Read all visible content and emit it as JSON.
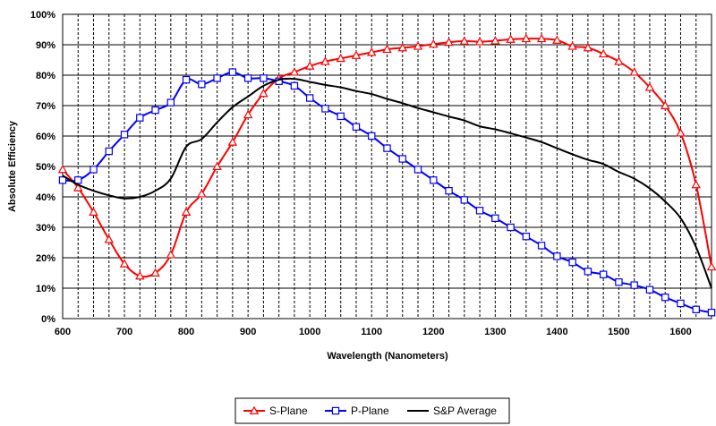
{
  "chart_data": {
    "type": "line",
    "title": "",
    "xlabel": "Wavelength (Nanometers)",
    "ylabel": "Absolute Efficiency",
    "xlim": [
      600,
      1650
    ],
    "ylim": [
      0,
      100
    ],
    "x_ticks": [
      "600",
      "700",
      "800",
      "900",
      "1000",
      "1100",
      "1200",
      "1300",
      "1400",
      "1500",
      "1600"
    ],
    "y_ticks": [
      "0%",
      "10%",
      "20%",
      "30%",
      "40%",
      "50%",
      "60%",
      "70%",
      "80%",
      "90%",
      "100%"
    ],
    "grid": true,
    "legend_position": "bottom",
    "series": [
      {
        "name": "S-Plane",
        "color": "#ff0000",
        "marker": "triangle",
        "x": [
          600,
          625,
          650,
          675,
          700,
          725,
          750,
          775,
          800,
          825,
          850,
          875,
          900,
          925,
          950,
          975,
          1000,
          1025,
          1050,
          1075,
          1100,
          1125,
          1150,
          1175,
          1200,
          1225,
          1250,
          1275,
          1300,
          1325,
          1350,
          1375,
          1400,
          1425,
          1450,
          1475,
          1500,
          1525,
          1550,
          1575,
          1600,
          1625,
          1650
        ],
        "y": [
          49,
          43,
          35,
          26,
          18,
          14,
          15,
          21,
          35,
          41,
          50,
          58,
          67,
          74,
          79,
          81,
          83,
          84.5,
          85.5,
          86.5,
          87.5,
          88.5,
          89,
          89.5,
          90.2,
          90.8,
          91.2,
          91,
          91.3,
          91.8,
          92,
          92,
          91.5,
          89.5,
          89,
          87,
          84.5,
          81,
          76,
          70,
          61,
          44,
          17
        ]
      },
      {
        "name": "P-Plane",
        "color": "#0000ff",
        "marker": "square",
        "x": [
          600,
          625,
          650,
          675,
          700,
          725,
          750,
          775,
          800,
          825,
          850,
          875,
          900,
          925,
          950,
          975,
          1000,
          1025,
          1050,
          1075,
          1100,
          1125,
          1150,
          1175,
          1200,
          1225,
          1250,
          1275,
          1300,
          1325,
          1350,
          1375,
          1400,
          1425,
          1450,
          1475,
          1500,
          1525,
          1550,
          1575,
          1600,
          1625,
          1650
        ],
        "y": [
          45.5,
          45.5,
          49,
          55,
          60.5,
          66,
          68.5,
          71,
          78.5,
          77,
          79,
          81,
          79,
          79,
          78,
          76.5,
          72.5,
          69,
          66.5,
          63,
          60,
          56,
          52.5,
          49,
          45.5,
          42,
          39,
          35.5,
          33,
          30,
          27,
          24,
          20.5,
          18.5,
          15.5,
          14.5,
          12,
          11,
          9.5,
          7,
          5,
          3,
          2
        ]
      },
      {
        "name": "S&P Average",
        "color": "#000000",
        "marker": "none",
        "x": [
          600,
          625,
          650,
          675,
          700,
          725,
          750,
          775,
          800,
          825,
          850,
          875,
          900,
          925,
          950,
          975,
          1000,
          1025,
          1050,
          1075,
          1100,
          1125,
          1150,
          1175,
          1200,
          1225,
          1250,
          1275,
          1300,
          1325,
          1350,
          1375,
          1400,
          1425,
          1450,
          1475,
          1500,
          1525,
          1550,
          1575,
          1600,
          1625,
          1650
        ],
        "y": [
          47,
          44,
          42,
          40.5,
          39.5,
          40,
          42,
          46,
          56.5,
          59,
          64.5,
          69.5,
          73,
          76.5,
          78.5,
          78.8,
          77.8,
          76.8,
          76,
          74.8,
          73.8,
          72.2,
          70.8,
          69.2,
          67.8,
          66.4,
          65.1,
          63.2,
          62.2,
          60.9,
          59.5,
          58,
          56,
          54,
          52.2,
          50.8,
          48.2,
          46,
          42.8,
          38.5,
          33,
          23.5,
          10
        ]
      }
    ]
  }
}
